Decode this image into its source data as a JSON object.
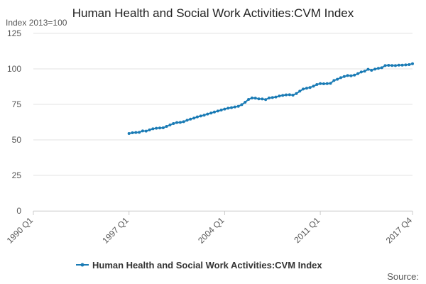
{
  "chart_data": {
    "type": "line",
    "title": "Human Health and Social Work Activities:CVM Index",
    "y_label": "Index 2013=100",
    "source": "Source:",
    "categories": [
      "1990 Q1",
      null,
      null,
      null,
      null,
      null,
      null,
      null,
      null,
      null,
      null,
      null,
      null,
      null,
      null,
      null,
      null,
      null,
      null,
      null,
      null,
      null,
      null,
      null,
      null,
      null,
      null,
      null,
      "1997 Q1",
      null,
      null,
      null,
      null,
      null,
      null,
      null,
      null,
      null,
      null,
      null,
      null,
      null,
      null,
      null,
      null,
      null,
      null,
      null,
      null,
      null,
      null,
      null,
      null,
      null,
      null,
      null,
      "2004 Q1",
      null,
      null,
      null,
      null,
      null,
      null,
      null,
      null,
      null,
      null,
      null,
      null,
      null,
      null,
      null,
      null,
      null,
      null,
      null,
      null,
      null,
      null,
      null,
      null,
      null,
      null,
      null,
      "2011 Q1",
      null,
      null,
      null,
      null,
      null,
      null,
      null,
      null,
      null,
      null,
      null,
      null,
      null,
      null,
      null,
      null,
      null,
      null,
      null,
      null,
      null,
      null,
      null,
      null,
      null,
      null,
      "2017 Q4"
    ],
    "series": [
      {
        "name": "Human Health and Social Work Activities:CVM Index",
        "color": "#1a7bb5",
        "values": [
          null,
          null,
          null,
          null,
          null,
          null,
          null,
          null,
          null,
          null,
          null,
          null,
          null,
          null,
          null,
          null,
          null,
          null,
          null,
          null,
          null,
          null,
          null,
          null,
          null,
          null,
          null,
          null,
          54.5,
          55,
          55.2,
          55.3,
          56.3,
          56.2,
          57,
          57.8,
          58.2,
          58.4,
          58.5,
          59.5,
          60.5,
          61.5,
          62.2,
          62.3,
          62.8,
          63.8,
          64.6,
          65.3,
          66.2,
          66.8,
          67.4,
          68.2,
          68.9,
          69.6,
          70.3,
          71,
          71.7,
          72.3,
          72.7,
          73.2,
          73.6,
          74.8,
          76.5,
          78.5,
          79.5,
          79.4,
          78.9,
          78.8,
          78.4,
          79.5,
          79.8,
          80.2,
          80.9,
          81.3,
          81.7,
          81.8,
          81.5,
          82.6,
          84.3,
          85.8,
          86.4,
          86.9,
          87.8,
          89,
          89.6,
          89.5,
          89.6,
          89.8,
          91.8,
          92.7,
          93.8,
          94.6,
          95.3,
          95.1,
          95.6,
          96.6,
          97.8,
          98.4,
          99.7,
          99,
          99.8,
          100.4,
          100.8,
          102.3,
          102.5,
          102.4,
          102.3,
          102.6,
          102.6,
          102.8,
          103,
          103.6
        ]
      }
    ],
    "ylim": [
      0,
      125
    ],
    "yticks": [
      0,
      25,
      50,
      75,
      100,
      125
    ],
    "grid": true,
    "legend": "bottom"
  }
}
